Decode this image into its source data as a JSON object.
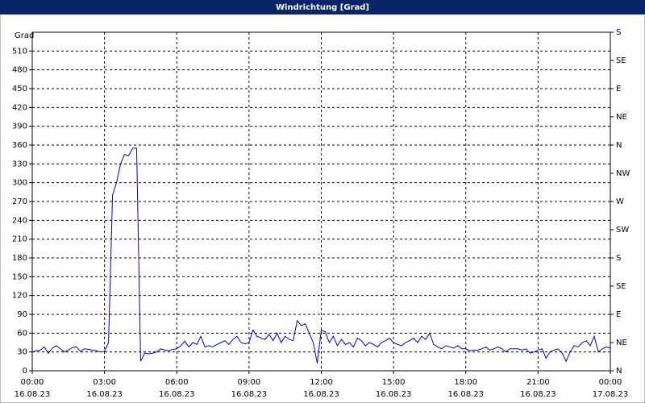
{
  "chart_data": {
    "type": "line",
    "title": "Windrichtung [Grad]",
    "ylabel": "Grad",
    "x": [
      0,
      10,
      20,
      30,
      40,
      50,
      60,
      70,
      80,
      90,
      100,
      110,
      120,
      130,
      140,
      150,
      160,
      170,
      180,
      190,
      200,
      210,
      220,
      230,
      240,
      250,
      260,
      270,
      280,
      290,
      300,
      310,
      320,
      330,
      340,
      350,
      360,
      370,
      380,
      390,
      400,
      410,
      420,
      430,
      440,
      450,
      460,
      470,
      480,
      490,
      500,
      510,
      520,
      530,
      540,
      550,
      560,
      570,
      580,
      590,
      600,
      610,
      620,
      630,
      640,
      650,
      660,
      670,
      680,
      690,
      700,
      710,
      720,
      730,
      740,
      750,
      760,
      770,
      780,
      790,
      800,
      810,
      820,
      830,
      840,
      850,
      860,
      870,
      880,
      890,
      900,
      910,
      920,
      930,
      940,
      950,
      960,
      970,
      980,
      990,
      1000,
      1010,
      1020,
      1030,
      1040,
      1050,
      1060,
      1070,
      1080,
      1090,
      1100,
      1110,
      1120,
      1130,
      1140,
      1150,
      1160,
      1170,
      1180,
      1190,
      1200,
      1210,
      1220,
      1230,
      1240,
      1250,
      1260,
      1270,
      1280,
      1290,
      1300,
      1310,
      1320,
      1330,
      1340,
      1350,
      1360,
      1370,
      1380,
      1390,
      1400,
      1410,
      1420,
      1430,
      1440
    ],
    "series": [
      {
        "name": "Windrichtung",
        "color": "#0000cc",
        "values": [
          30,
          32,
          33,
          38,
          28,
          36,
          40,
          35,
          30,
          33,
          37,
          38,
          31,
          35,
          34,
          33,
          32,
          30,
          31,
          45,
          280,
          300,
          330,
          345,
          343,
          355,
          355,
          15,
          28,
          27,
          28,
          30,
          35,
          33,
          32,
          34,
          35,
          40,
          47,
          38,
          45,
          42,
          55,
          38,
          40,
          38,
          42,
          45,
          48,
          42,
          50,
          55,
          45,
          43,
          45,
          65,
          55,
          52,
          50,
          58,
          48,
          60,
          45,
          55,
          50,
          48,
          80,
          72,
          75,
          60,
          45,
          12,
          65,
          62,
          45,
          55,
          40,
          50,
          42,
          45,
          38,
          52,
          48,
          40,
          45,
          42,
          38,
          45,
          48,
          52,
          45,
          42,
          40,
          45,
          48,
          52,
          45,
          55,
          50,
          60,
          42,
          38,
          35,
          40,
          38,
          36,
          40,
          35,
          35,
          32,
          33,
          33,
          35,
          38,
          33,
          35,
          38,
          35,
          30,
          35,
          35,
          35,
          33,
          35,
          28,
          30,
          33,
          35,
          20,
          30,
          33,
          35,
          28,
          15,
          30,
          40,
          38,
          45,
          48,
          40,
          55,
          30,
          35,
          38,
          36
        ]
      }
    ],
    "xlim": [
      0,
      1440
    ],
    "xticks": [
      {
        "value": 0,
        "label": "00:00"
      },
      {
        "value": 180,
        "label": "03:00"
      },
      {
        "value": 360,
        "label": "06:00"
      },
      {
        "value": 540,
        "label": "09:00"
      },
      {
        "value": 720,
        "label": "12:00"
      },
      {
        "value": 900,
        "label": "15:00"
      },
      {
        "value": 1080,
        "label": "18:00"
      },
      {
        "value": 1260,
        "label": "21:00"
      },
      {
        "value": 1440,
        "label": "00:00"
      }
    ],
    "xtick_dates": [
      "16.08.23",
      "16.08.23",
      "16.08.23",
      "16.08.23",
      "16.08.23",
      "16.08.23",
      "16.08.23",
      "16.08.23",
      "17.08.23"
    ],
    "ylim": [
      0,
      540
    ],
    "yticks": [
      0,
      30,
      60,
      90,
      120,
      150,
      180,
      210,
      240,
      270,
      300,
      330,
      360,
      390,
      420,
      450,
      480,
      510
    ],
    "y2lim": [
      0,
      540
    ],
    "y2ticks": [
      {
        "value": 0,
        "label": "N"
      },
      {
        "value": 45,
        "label": "NE"
      },
      {
        "value": 90,
        "label": "E"
      },
      {
        "value": 135,
        "label": "SE"
      },
      {
        "value": 180,
        "label": "S"
      },
      {
        "value": 225,
        "label": "SW"
      },
      {
        "value": 270,
        "label": "W"
      },
      {
        "value": 315,
        "label": "NW"
      },
      {
        "value": 360,
        "label": "N"
      },
      {
        "value": 405,
        "label": "NE"
      },
      {
        "value": 450,
        "label": "E"
      },
      {
        "value": 495,
        "label": "SE"
      },
      {
        "value": 540,
        "label": "S"
      }
    ],
    "grid": true
  }
}
